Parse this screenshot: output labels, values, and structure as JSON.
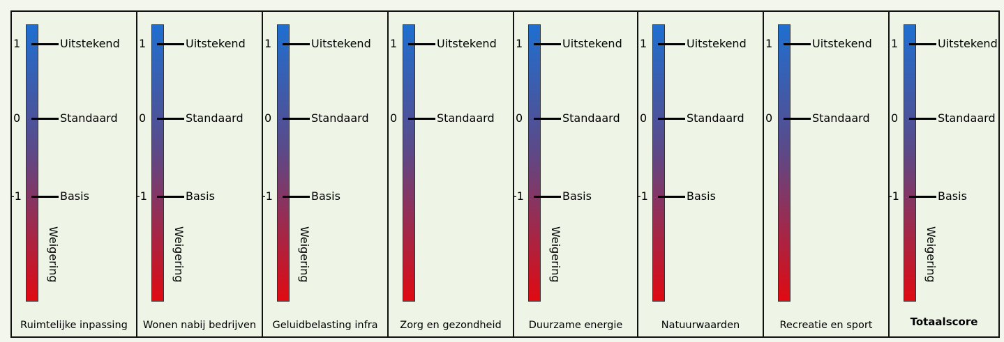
{
  "scale": {
    "levels": [
      {
        "value": "1",
        "label": "Uitstekend"
      },
      {
        "value": "0",
        "label": "Standaard"
      },
      {
        "value": "-1",
        "label": "Basis"
      }
    ],
    "bottom_label": "Weigering",
    "gradient_colors": {
      "top": "#1f6fd0",
      "middle": "#5a4a8a",
      "bottom": "#e00a12"
    }
  },
  "panels": [
    {
      "title": "Ruimtelijke inpassing",
      "show_basis": true,
      "show_weigering": true,
      "bold": false
    },
    {
      "title": "Wonen nabij bedrijven",
      "show_basis": true,
      "show_weigering": true,
      "bold": false
    },
    {
      "title": "Geluidbelasting infra",
      "show_basis": true,
      "show_weigering": true,
      "bold": false
    },
    {
      "title": "Zorg en gezondheid",
      "show_basis": false,
      "show_weigering": false,
      "bold": false
    },
    {
      "title": "Duurzame energie",
      "show_basis": true,
      "show_weigering": true,
      "bold": false
    },
    {
      "title": "Natuurwaarden",
      "show_basis": true,
      "show_weigering": false,
      "bold": false
    },
    {
      "title": "Recreatie en sport",
      "show_basis": false,
      "show_weigering": false,
      "bold": false
    },
    {
      "title": "Totaalscore",
      "show_basis": true,
      "show_weigering": true,
      "bold": true
    }
  ]
}
